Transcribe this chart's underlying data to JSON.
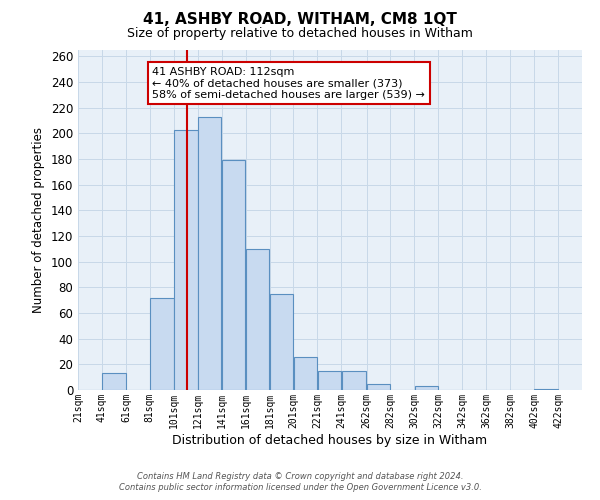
{
  "title": "41, ASHBY ROAD, WITHAM, CM8 1QT",
  "subtitle": "Size of property relative to detached houses in Witham",
  "xlabel": "Distribution of detached houses by size in Witham",
  "ylabel": "Number of detached properties",
  "bar_left_edges": [
    21,
    41,
    61,
    81,
    101,
    121,
    141,
    161,
    181,
    201,
    221,
    241,
    262,
    282,
    302,
    322,
    342,
    362,
    382,
    402
  ],
  "bar_widths": [
    20,
    20,
    20,
    20,
    20,
    20,
    20,
    20,
    20,
    20,
    20,
    21,
    20,
    20,
    20,
    20,
    20,
    20,
    20,
    20
  ],
  "bar_heights": [
    0,
    13,
    0,
    72,
    203,
    213,
    179,
    110,
    75,
    26,
    15,
    15,
    5,
    0,
    3,
    0,
    0,
    0,
    0,
    1
  ],
  "tick_labels": [
    "21sqm",
    "41sqm",
    "61sqm",
    "81sqm",
    "101sqm",
    "121sqm",
    "141sqm",
    "161sqm",
    "181sqm",
    "201sqm",
    "221sqm",
    "241sqm",
    "262sqm",
    "282sqm",
    "302sqm",
    "322sqm",
    "342sqm",
    "362sqm",
    "382sqm",
    "402sqm",
    "422sqm"
  ],
  "bar_fill_color": "#c8daf0",
  "bar_edge_color": "#5a8fc0",
  "vline_x": 112,
  "vline_color": "#cc0000",
  "annotation_line1": "41 ASHBY ROAD: 112sqm",
  "annotation_line2": "← 40% of detached houses are smaller (373)",
  "annotation_line3": "58% of semi-detached houses are larger (539) →",
  "annotation_box_color": "#ffffff",
  "annotation_border_color": "#cc0000",
  "ylim": [
    0,
    265
  ],
  "yticks": [
    0,
    20,
    40,
    60,
    80,
    100,
    120,
    140,
    160,
    180,
    200,
    220,
    240,
    260
  ],
  "footer1": "Contains HM Land Registry data © Crown copyright and database right 2024.",
  "footer2": "Contains public sector information licensed under the Open Government Licence v3.0.",
  "background_color": "#ffffff",
  "plot_bg_color": "#e8f0f8",
  "grid_color": "#c8d8e8"
}
